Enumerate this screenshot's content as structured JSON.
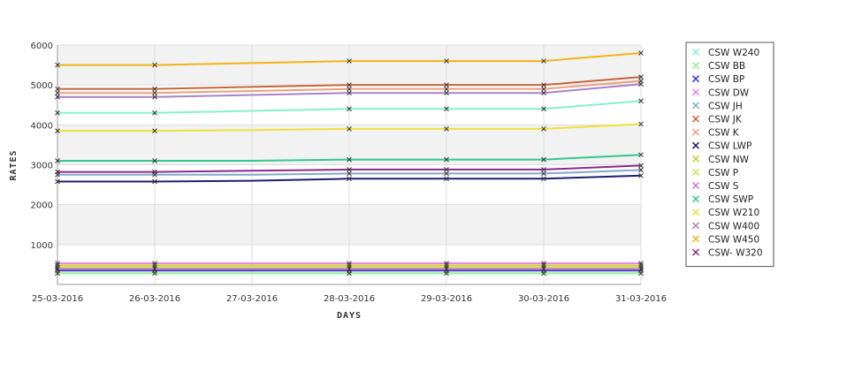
{
  "chart_data": {
    "type": "line",
    "xlabel": "DAYS",
    "ylabel": "RATES",
    "x": [
      "25-03-2016",
      "26-03-2016",
      "27-03-2016",
      "28-03-2016",
      "29-03-2016",
      "30-03-2016",
      "31-03-2016"
    ],
    "x_marker_points": [
      "25-03-2016",
      "26-03-2016",
      "28-03-2016",
      "29-03-2016",
      "30-03-2016",
      "31-03-2016"
    ],
    "ylim": [
      0,
      6000
    ],
    "yticks": [
      1000,
      2000,
      3000,
      4000,
      5000,
      6000
    ],
    "grid": true,
    "legend_position": "right",
    "series": [
      {
        "name": "CSW  W240",
        "color": "#86f0cf",
        "values": [
          4300,
          4300,
          4350,
          4400,
          4400,
          4400,
          4600
        ]
      },
      {
        "name": "CSW BB",
        "color": "#90ee90",
        "values": [
          280,
          280,
          280,
          280,
          280,
          280,
          280
        ]
      },
      {
        "name": "CSW BP",
        "color": "#3a3acd",
        "values": [
          350,
          350,
          350,
          350,
          350,
          350,
          350
        ]
      },
      {
        "name": "CSW DW",
        "color": "#ee82ee",
        "values": [
          530,
          530,
          530,
          530,
          530,
          530,
          530
        ]
      },
      {
        "name": "CSW JH",
        "color": "#82a8c8",
        "values": [
          2750,
          2750,
          2750,
          2780,
          2780,
          2780,
          2870
        ]
      },
      {
        "name": "CSW JK",
        "color": "#c8643c",
        "values": [
          4900,
          4900,
          4950,
          5000,
          5000,
          5000,
          5200
        ]
      },
      {
        "name": "CSW K",
        "color": "#e8a07a",
        "values": [
          4800,
          4800,
          4850,
          4900,
          4900,
          4900,
          5100
        ]
      },
      {
        "name": "CSW LWP",
        "color": "#1e1e6e",
        "values": [
          2580,
          2580,
          2600,
          2650,
          2650,
          2650,
          2730
        ]
      },
      {
        "name": "CSW NW",
        "color": "#d2c83c",
        "values": [
          480,
          480,
          480,
          480,
          480,
          480,
          480
        ]
      },
      {
        "name": "CSW P",
        "color": "#c8e650",
        "values": [
          430,
          430,
          430,
          430,
          430,
          430,
          430
        ]
      },
      {
        "name": "CSW S",
        "color": "#c878c8",
        "values": [
          390,
          390,
          390,
          390,
          390,
          390,
          390
        ]
      },
      {
        "name": "CSW SWP",
        "color": "#32c88c",
        "values": [
          3100,
          3100,
          3100,
          3130,
          3130,
          3130,
          3250
        ]
      },
      {
        "name": "CSW W210",
        "color": "#f0e03c",
        "values": [
          3850,
          3850,
          3870,
          3900,
          3900,
          3900,
          4020
        ]
      },
      {
        "name": "CSW W400",
        "color": "#a882c8",
        "values": [
          4700,
          4700,
          4750,
          4800,
          4800,
          4800,
          5020
        ]
      },
      {
        "name": "CSW W450",
        "color": "#f0b414",
        "values": [
          5500,
          5500,
          5550,
          5600,
          5600,
          5600,
          5800
        ]
      },
      {
        "name": "CSW- W320",
        "color": "#8c288c",
        "values": [
          2820,
          2820,
          2850,
          2880,
          2880,
          2880,
          2980
        ]
      }
    ]
  }
}
